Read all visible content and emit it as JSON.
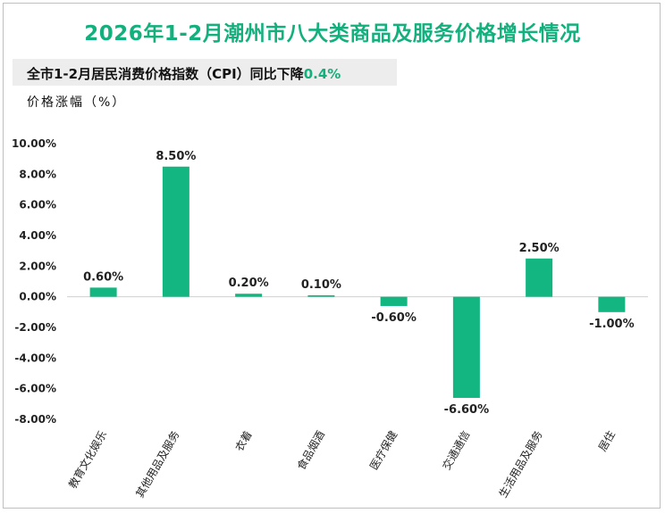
{
  "header": {
    "title": "2026年1-2月潮州市八大类商品及服务价格增长情况",
    "subtitle_prefix": "全市1-2月居民消费价格指数（CPI）同比下降",
    "subtitle_value": "0.4%",
    "y_unit": "价格涨幅（%）"
  },
  "colors": {
    "accent": "#13b07d",
    "bar": "#13b680"
  },
  "chart_data": {
    "type": "bar",
    "categories": [
      "教育文化娱乐",
      "其他用品及服务",
      "衣着",
      "食品烟酒",
      "医疗保健",
      "交通通信",
      "生活用品及服务",
      "居住"
    ],
    "values": [
      0.6,
      8.5,
      0.2,
      0.1,
      -0.6,
      -6.6,
      2.5,
      -1.0
    ],
    "data_labels": [
      "0.60%",
      "8.50%",
      "0.20%",
      "0.10%",
      "-0.60%",
      "-6.60%",
      "2.50%",
      "-1.00%"
    ],
    "y_ticks": [
      10,
      8,
      6,
      4,
      2,
      0,
      -2,
      -4,
      -6,
      -8
    ],
    "y_tick_labels": [
      "10.00%",
      "8.00%",
      "6.00%",
      "4.00%",
      "2.00%",
      "0.00%",
      "-2.00%",
      "-4.00%",
      "-6.00%",
      "-8.00%"
    ],
    "ylim": [
      -8,
      10
    ],
    "grid": false,
    "legend": "none"
  }
}
